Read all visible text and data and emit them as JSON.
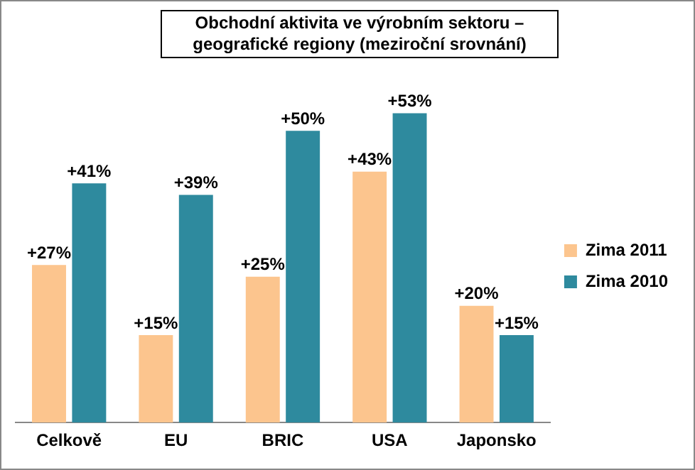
{
  "chart_data": {
    "type": "bar",
    "title": "Obchodní aktivita ve výrobním sektoru – geografické regiony (meziroční srovnání)",
    "categories": [
      "Celkově",
      "EU",
      "BRIC",
      "USA",
      "Japonsko"
    ],
    "series": [
      {
        "name": "Zima 2011",
        "color": "#fcc58e",
        "values": [
          27,
          15,
          25,
          43,
          20
        ],
        "value_labels": [
          "+27%",
          "+15%",
          "+25%",
          "+43%",
          "+20%"
        ]
      },
      {
        "name": "Zima 2010",
        "color": "#2e8a9e",
        "values": [
          41,
          39,
          50,
          53,
          15
        ],
        "value_labels": [
          "+41%",
          "+39%",
          "+50%",
          "+53%",
          "+15%"
        ]
      }
    ],
    "legend": "right",
    "grid": false,
    "tick_labels": "x"
  }
}
